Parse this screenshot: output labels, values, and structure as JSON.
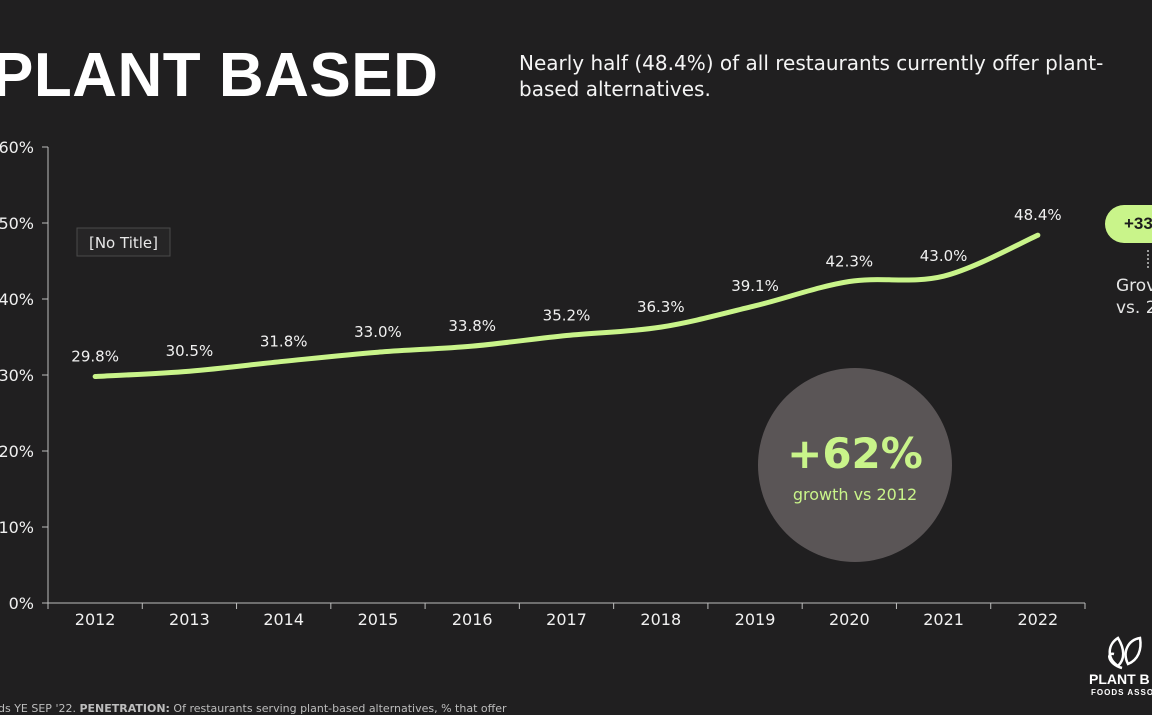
{
  "title": "PLANT BASED",
  "subtitle": "Nearly half (48.4%) of all restaurants currently offer plant-based alternatives.",
  "chart_data": {
    "type": "line",
    "title": "[No Title]",
    "categories": [
      "2012",
      "2013",
      "2014",
      "2015",
      "2016",
      "2017",
      "2018",
      "2019",
      "2020",
      "2021",
      "2022"
    ],
    "values": [
      29.8,
      30.5,
      31.8,
      33.0,
      33.8,
      35.2,
      36.3,
      39.1,
      42.3,
      43.0,
      48.4
    ],
    "data_labels": [
      "29.8%",
      "30.5%",
      "31.8%",
      "33.0%",
      "33.8%",
      "35.2%",
      "36.3%",
      "39.1%",
      "42.3%",
      "43.0%",
      "48.4%"
    ],
    "ylim": [
      0,
      60
    ],
    "yticks": [
      "0%",
      "10%",
      "20%",
      "30%",
      "40%",
      "50%",
      "60%"
    ],
    "xlabel": "",
    "ylabel": "",
    "grid": false,
    "line_color": "#c9f48a"
  },
  "callout": {
    "value": "+62%",
    "label": "growth vs 2012",
    "bg_color": "#5a5556",
    "accent": "#c9f48a"
  },
  "side_callout": {
    "pill": "+33",
    "line1": "Grov",
    "line2": "vs. 2"
  },
  "logo": {
    "name": "PLANT B",
    "sub": "FOODS ASSO",
    "icon": "leaf-logo-icon"
  },
  "footnote": {
    "prefix": "ds YE SEP '22. ",
    "bold": "PENETRATION:",
    "rest": " Of restaurants serving plant-based alternatives, % that offer"
  }
}
